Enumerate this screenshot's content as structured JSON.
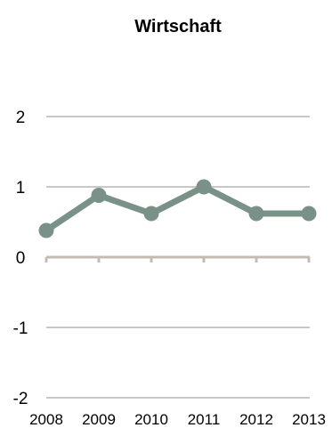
{
  "chart_data": {
    "type": "line",
    "title": "Wirtschaft",
    "xlabel": "",
    "ylabel": "",
    "categories": [
      "2008",
      "2009",
      "2010",
      "2011",
      "2012",
      "2013"
    ],
    "series": [
      {
        "values": [
          0.38,
          0.88,
          0.62,
          1.0,
          0.62,
          0.62
        ]
      }
    ],
    "ylim": [
      -2,
      2
    ],
    "yticks": [
      "-2",
      "-1",
      "0",
      "1",
      "2"
    ],
    "grid": true,
    "legend": "none",
    "colors": {
      "line": "#7a9187",
      "gridline": "#c8c8c8",
      "zero_axis": "#c4bcb2"
    }
  }
}
